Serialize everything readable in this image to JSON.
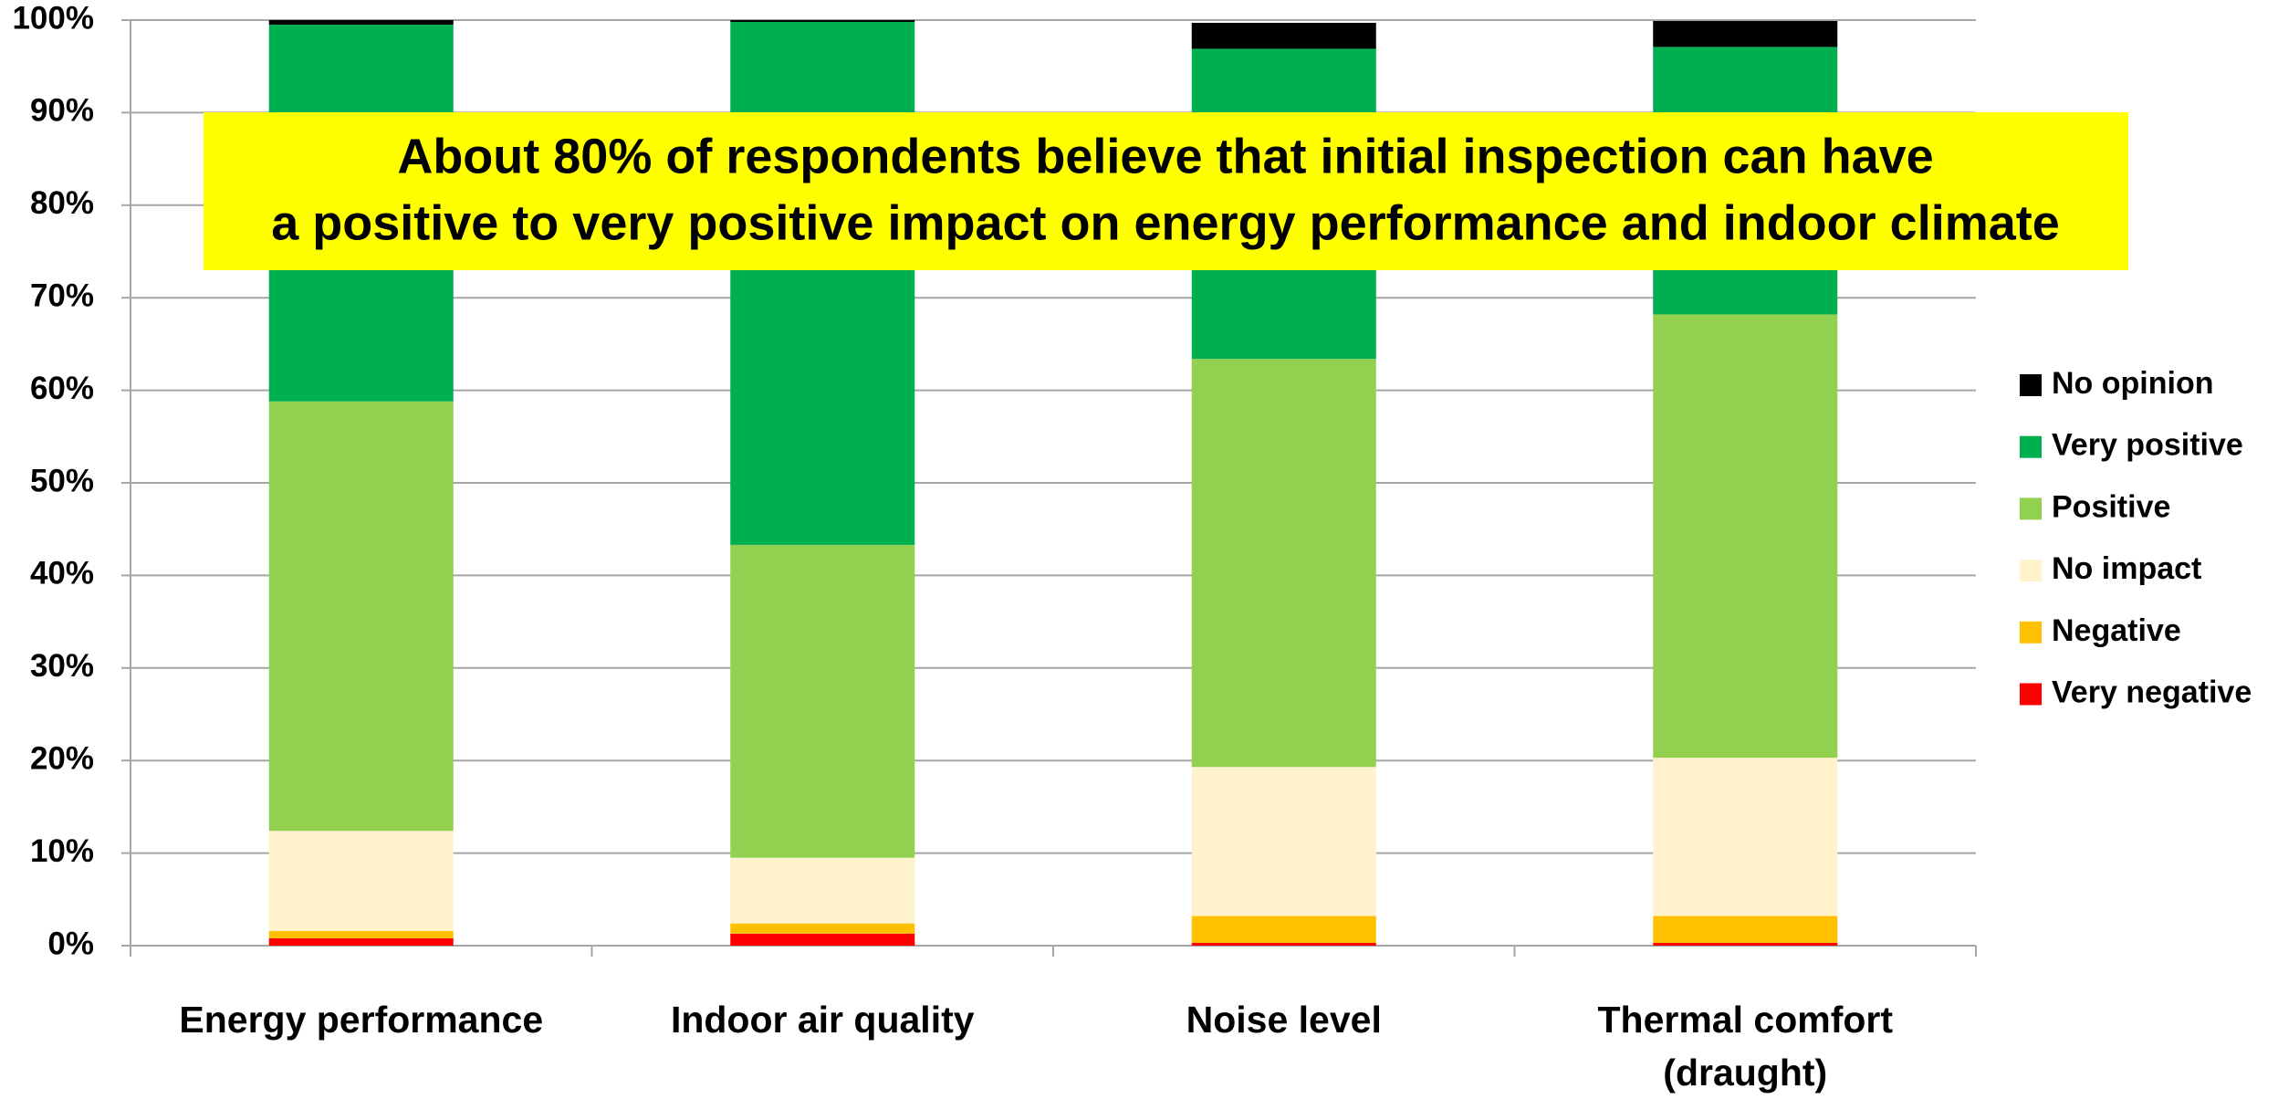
{
  "chart_data": {
    "type": "stacked_bar",
    "annotation": [
      "About 80% of respondents believe that initial inspection can have",
      "a positive to very positive impact on energy performance and indoor climate"
    ],
    "categories": [
      "Energy performance",
      "Indoor air quality",
      "Noise level",
      "Thermal comfort (draught)"
    ],
    "series": [
      {
        "name": "Very negative",
        "color": "#ff0000",
        "values": [
          0.8,
          1.3,
          0.3,
          0.3
        ]
      },
      {
        "name": "Negative",
        "color": "#ffc000",
        "values": [
          0.8,
          1.1,
          2.9,
          2.9
        ]
      },
      {
        "name": "No impact",
        "color": "#fff2cc",
        "values": [
          10.8,
          7.1,
          16.1,
          17.1
        ]
      },
      {
        "name": "Positive",
        "color": "#92d050",
        "values": [
          46.4,
          33.8,
          44.1,
          47.9
        ]
      },
      {
        "name": "Very positive",
        "color": "#00b050",
        "values": [
          40.7,
          56.5,
          33.5,
          28.9
        ]
      },
      {
        "name": "No opinion",
        "color": "#000000",
        "values": [
          0.5,
          0.2,
          2.8,
          2.8
        ]
      }
    ],
    "ylim": [
      0,
      100
    ],
    "yticks": [
      {
        "value": 0,
        "label": "0%"
      },
      {
        "value": 10,
        "label": "10%"
      },
      {
        "value": 20,
        "label": "20%"
      },
      {
        "value": 30,
        "label": "30%"
      },
      {
        "value": 40,
        "label": "40%"
      },
      {
        "value": 50,
        "label": "50%"
      },
      {
        "value": 60,
        "label": "60%"
      },
      {
        "value": 70,
        "label": "70%"
      },
      {
        "value": 80,
        "label": "80%"
      },
      {
        "value": 90,
        "label": "90%"
      },
      {
        "value": 100,
        "label": "100%"
      }
    ],
    "grid": true,
    "legend": "right"
  }
}
